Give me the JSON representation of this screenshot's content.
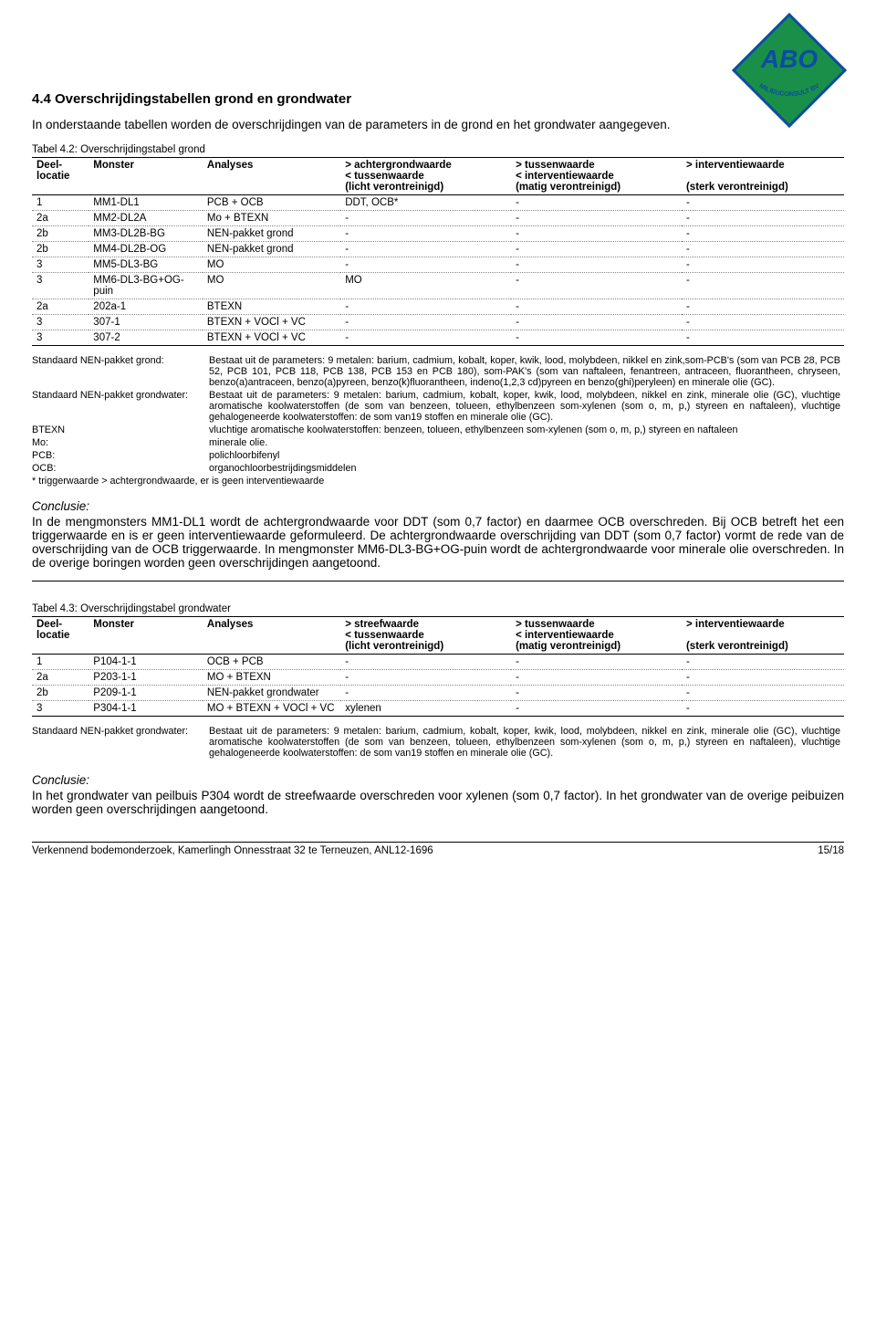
{
  "logo": {
    "top_text": "ABO",
    "bottom_text": "MILIEUCONSULT BV",
    "fill": "#1a8f4a",
    "stroke": "#0b4da0",
    "text_fill": "#0b4da0"
  },
  "section": {
    "title": "4.4 Overschrijdingstabellen grond en grondwater",
    "intro": "In onderstaande tabellen worden de overschrijdingen van de parameters in de grond en het grondwater aangegeven."
  },
  "table1": {
    "caption": "Tabel 4.2: Overschrijdingstabel grond",
    "headers": [
      "Deel-\nlocatie",
      "Monster",
      "Analyses",
      "> achtergrondwaarde\n< tussenwaarde\n(licht verontreinigd)",
      "> tussenwaarde\n< interventiewaarde\n(matig verontreinigd)",
      "> interventiewaarde\n\n(sterk verontreinigd)"
    ],
    "rows": [
      [
        "1",
        "MM1-DL1",
        "PCB + OCB",
        "DDT, OCB*",
        "-",
        "-"
      ],
      [
        "2a",
        "MM2-DL2A",
        "Mo + BTEXN",
        "-",
        "-",
        "-"
      ],
      [
        "2b",
        "MM3-DL2B-BG",
        "NEN-pakket grond",
        "-",
        "-",
        "-"
      ],
      [
        "2b",
        "MM4-DL2B-OG",
        "NEN-pakket grond",
        "-",
        "-",
        "-"
      ],
      [
        "3",
        "MM5-DL3-BG",
        "MO",
        "-",
        "-",
        "-"
      ],
      [
        "3",
        "MM6-DL3-BG+OG-puin",
        "MO",
        "MO",
        "-",
        "-"
      ],
      [
        "2a",
        "202a-1",
        "BTEXN",
        "-",
        "-",
        "-"
      ],
      [
        "3",
        "307-1",
        "BTEXN + VOCl + VC",
        "-",
        "-",
        "-"
      ],
      [
        "3",
        "307-2",
        "BTEXN + VOCl + VC",
        "-",
        "-",
        "-"
      ]
    ]
  },
  "defs1": [
    [
      "Standaard NEN-pakket grond:",
      "Bestaat uit de parameters: 9 metalen: barium, cadmium, kobalt, koper, kwik, lood, molybdeen, nikkel en zink,som-PCB's (som van PCB 28, PCB 52, PCB 101, PCB 118, PCB 138, PCB 153 en PCB 180), som-PAK's (som van naftaleen, fenantreen, antraceen, fluorantheen, chryseen, benzo(a)antraceen, benzo(a)pyreen, benzo(k)fluorantheen, indeno(1,2,3 cd)pyreen en benzo(ghi)peryleen) en minerale olie (GC)."
    ],
    [
      "Standaard NEN-pakket grondwater:",
      "Bestaat uit de parameters: 9 metalen: barium, cadmium, kobalt, koper, kwik, lood, molybdeen, nikkel en zink, minerale olie (GC), vluchtige aromatische koolwaterstoffen (de som van benzeen, tolueen, ethylbenzeen som-xylenen (som o, m, p,) styreen en naftaleen), vluchtige gehalogeneerde koolwaterstoffen: de som van19 stoffen en minerale olie (GC)."
    ],
    [
      "BTEXN",
      "vluchtige aromatische koolwaterstoffen: benzeen, tolueen, ethylbenzeen som-xylenen (som o, m, p,) styreen en naftaleen"
    ],
    [
      "Mo:",
      "minerale olie."
    ],
    [
      "PCB:",
      "polichloorbifenyl"
    ],
    [
      "OCB:",
      "organochloorbestrijdingsmiddelen"
    ]
  ],
  "defs1_footnote": "* triggerwaarde > achtergrondwaarde, er is geen interventiewaarde",
  "conclusion1": {
    "title": "Conclusie:",
    "text": "In de mengmonsters MM1-DL1 wordt de achtergrondwaarde voor DDT (som 0,7 factor) en daarmee OCB overschreden. Bij OCB betreft het een triggerwaarde en is er geen interventiewaarde geformuleerd. De achtergrondwaarde overschrijding van DDT (som 0,7 factor) vormt de rede van de overschrijding van de OCB triggerwaarde. In mengmonster MM6-DL3-BG+OG-puin wordt de achtergrondwaarde voor minerale olie overschreden. In de overige boringen worden geen overschrijdingen aangetoond."
  },
  "table2": {
    "caption": "Tabel 4.3: Overschrijdingstabel grondwater",
    "headers": [
      "Deel-\nlocatie",
      "Monster",
      "Analyses",
      "> streefwaarde\n< tussenwaarde\n(licht verontreinigd)",
      "> tussenwaarde\n< interventiewaarde\n(matig verontreinigd)",
      "> interventiewaarde\n\n(sterk verontreinigd)"
    ],
    "rows": [
      [
        "1",
        "P104-1-1",
        "OCB + PCB",
        "-",
        "-",
        "-"
      ],
      [
        "2a",
        "P203-1-1",
        "MO + BTEXN",
        "-",
        "-",
        "-"
      ],
      [
        "2b",
        "P209-1-1",
        "NEN-pakket grondwater",
        "-",
        "-",
        "-"
      ],
      [
        "3",
        "P304-1-1",
        "MO + BTEXN + VOCl + VC",
        "xylenen",
        "-",
        "-"
      ]
    ]
  },
  "defs2": [
    [
      "Standaard NEN-pakket grondwater:",
      "Bestaat uit de parameters: 9 metalen: barium, cadmium, kobalt, koper, kwik, lood, molybdeen, nikkel en zink, minerale olie (GC), vluchtige aromatische koolwaterstoffen (de som van benzeen, tolueen, ethylbenzeen som-xylenen (som o, m, p,) styreen en naftaleen), vluchtige gehalogeneerde koolwaterstoffen: de som van19 stoffen en minerale olie (GC)."
    ]
  ],
  "conclusion2": {
    "title": "Conclusie:",
    "text": "In het grondwater van peilbuis P304 wordt de streefwaarde overschreden voor xylenen (som 0,7 factor). In het grondwater van de overige peibuizen worden geen overschrijdingen aangetoond."
  },
  "footer": {
    "left": "Verkennend bodemonderzoek, Kamerlingh Onnesstraat 32 te Terneuzen, ANL12-1696",
    "right": "15/18"
  }
}
